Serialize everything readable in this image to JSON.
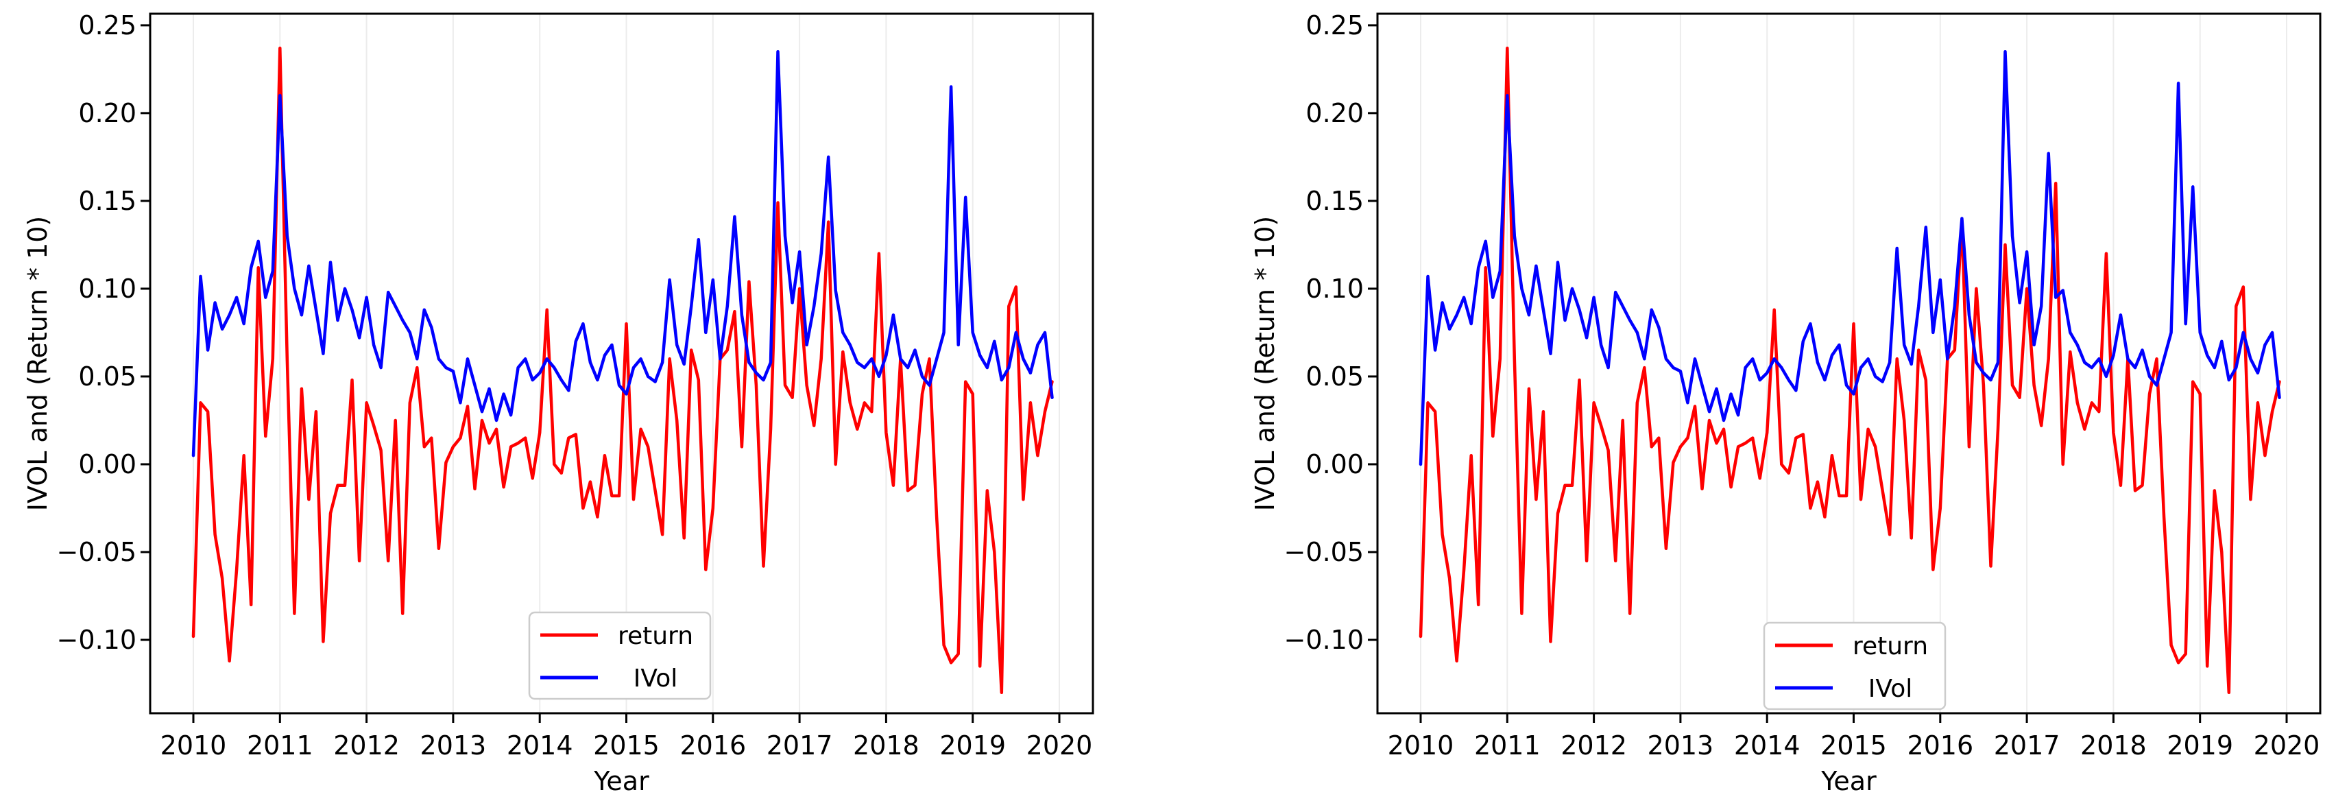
{
  "figure": {
    "background": "#ffffff",
    "panel_count": 2,
    "grid_color": "#ececec",
    "spine_color": "#000000"
  },
  "chart_data": [
    {
      "type": "line",
      "title": "",
      "xlabel": "Year",
      "ylabel": "IVOL and (Return * 10)",
      "x_tick_labels": [
        "2010",
        "2011",
        "2012",
        "2013",
        "2014",
        "2015",
        "2016",
        "2017",
        "2018",
        "2019",
        "2020"
      ],
      "y_tick_labels": [
        "0.25",
        "0.20",
        "0.15",
        "0.10",
        "0.05",
        "0.00",
        "−0.05",
        "−0.10"
      ],
      "y_tick_values": [
        0.25,
        0.2,
        0.15,
        0.1,
        0.05,
        0.0,
        -0.05,
        -0.1
      ],
      "xlim": [
        2009.5,
        2020.45
      ],
      "ylim": [
        -0.1418,
        0.2566
      ],
      "grid": "vertical-years-only",
      "x_start_year": 2010,
      "x_frequency": "monthly",
      "legend": {
        "position": "lower-center",
        "entries": [
          {
            "label": "return",
            "color": "#ff0000"
          },
          {
            "label": "IVol",
            "color": "#0000ff"
          }
        ]
      },
      "series": [
        {
          "name": "return",
          "color": "#ff0000",
          "values": [
            -0.098,
            0.035,
            0.03,
            -0.04,
            -0.065,
            -0.112,
            -0.06,
            0.005,
            -0.08,
            0.112,
            0.016,
            0.06,
            0.237,
            0.06,
            -0.085,
            0.043,
            -0.02,
            0.03,
            -0.101,
            -0.028,
            -0.012,
            -0.012,
            0.048,
            -0.055,
            0.035,
            0.022,
            0.008,
            -0.055,
            0.025,
            -0.085,
            0.035,
            0.055,
            0.01,
            0.015,
            -0.048,
            0.001,
            0.01,
            0.015,
            0.033,
            -0.014,
            0.025,
            0.012,
            0.02,
            -0.013,
            0.01,
            0.012,
            0.015,
            -0.008,
            0.018,
            0.088,
            0.0,
            -0.005,
            0.015,
            0.017,
            -0.025,
            -0.01,
            -0.03,
            0.005,
            -0.018,
            -0.018,
            0.08,
            -0.02,
            0.02,
            0.01,
            -0.015,
            -0.04,
            0.06,
            0.025,
            -0.042,
            0.065,
            0.048,
            -0.06,
            -0.025,
            0.06,
            0.065,
            0.087,
            0.01,
            0.104,
            0.045,
            -0.058,
            0.02,
            0.149,
            0.045,
            0.038,
            0.1,
            0.045,
            0.022,
            0.06,
            0.138,
            0.0,
            0.064,
            0.035,
            0.02,
            0.035,
            0.03,
            0.12,
            0.018,
            -0.012,
            0.06,
            -0.015,
            -0.012,
            0.04,
            0.06,
            -0.03,
            -0.103,
            -0.113,
            -0.108,
            0.047,
            0.04,
            -0.115,
            -0.015,
            -0.05,
            -0.13,
            0.09,
            0.101,
            -0.02,
            0.035,
            0.005,
            0.03,
            0.047
          ]
        },
        {
          "name": "IVol",
          "color": "#0000ff",
          "values": [
            0.005,
            0.107,
            0.065,
            0.092,
            0.077,
            0.085,
            0.095,
            0.08,
            0.112,
            0.127,
            0.095,
            0.11,
            0.21,
            0.13,
            0.1,
            0.085,
            0.113,
            0.088,
            0.063,
            0.115,
            0.082,
            0.1,
            0.088,
            0.072,
            0.095,
            0.068,
            0.055,
            0.098,
            0.09,
            0.082,
            0.075,
            0.06,
            0.088,
            0.078,
            0.06,
            0.055,
            0.053,
            0.035,
            0.06,
            0.045,
            0.03,
            0.043,
            0.025,
            0.04,
            0.028,
            0.055,
            0.06,
            0.048,
            0.052,
            0.06,
            0.055,
            0.048,
            0.042,
            0.07,
            0.08,
            0.058,
            0.048,
            0.062,
            0.068,
            0.045,
            0.04,
            0.055,
            0.06,
            0.05,
            0.047,
            0.058,
            0.105,
            0.068,
            0.057,
            0.09,
            0.128,
            0.075,
            0.105,
            0.06,
            0.09,
            0.141,
            0.085,
            0.058,
            0.052,
            0.048,
            0.058,
            0.235,
            0.13,
            0.092,
            0.121,
            0.068,
            0.09,
            0.12,
            0.175,
            0.099,
            0.075,
            0.068,
            0.058,
            0.055,
            0.06,
            0.05,
            0.062,
            0.085,
            0.06,
            0.055,
            0.065,
            0.05,
            0.045,
            0.06,
            0.075,
            0.215,
            0.068,
            0.152,
            0.075,
            0.062,
            0.055,
            0.07,
            0.048,
            0.055,
            0.075,
            0.06,
            0.052,
            0.068,
            0.075,
            0.038
          ]
        }
      ]
    },
    {
      "type": "line",
      "title": "",
      "xlabel": "Year",
      "ylabel": "IVOL and (Return * 10)",
      "x_tick_labels": [
        "2010",
        "2011",
        "2012",
        "2013",
        "2014",
        "2015",
        "2016",
        "2017",
        "2018",
        "2019",
        "2020"
      ],
      "y_tick_labels": [
        "0.25",
        "0.20",
        "0.15",
        "0.10",
        "0.05",
        "0.00",
        "−0.05",
        "−0.10"
      ],
      "y_tick_values": [
        0.25,
        0.2,
        0.15,
        0.1,
        0.05,
        0.0,
        -0.05,
        -0.1
      ],
      "xlim": [
        2009.5,
        2020.45
      ],
      "ylim": [
        -0.1418,
        0.2566
      ],
      "grid": "vertical-years-only",
      "x_start_year": 2010,
      "x_frequency": "monthly",
      "legend": {
        "position": "lower-center",
        "entries": [
          {
            "label": "return",
            "color": "#ff0000"
          },
          {
            "label": "IVol",
            "color": "#0000ff"
          }
        ]
      },
      "series": [
        {
          "name": "return",
          "color": "#ff0000",
          "values": [
            -0.098,
            0.035,
            0.03,
            -0.04,
            -0.065,
            -0.112,
            -0.06,
            0.005,
            -0.08,
            0.112,
            0.016,
            0.06,
            0.237,
            0.06,
            -0.085,
            0.043,
            -0.02,
            0.03,
            -0.101,
            -0.028,
            -0.012,
            -0.012,
            0.048,
            -0.055,
            0.035,
            0.022,
            0.008,
            -0.055,
            0.025,
            -0.085,
            0.035,
            0.055,
            0.01,
            0.015,
            -0.048,
            0.001,
            0.01,
            0.015,
            0.033,
            -0.014,
            0.025,
            0.012,
            0.02,
            -0.013,
            0.01,
            0.012,
            0.015,
            -0.008,
            0.018,
            0.088,
            0.0,
            -0.005,
            0.015,
            0.017,
            -0.025,
            -0.01,
            -0.03,
            0.005,
            -0.018,
            -0.018,
            0.08,
            -0.02,
            0.02,
            0.01,
            -0.015,
            -0.04,
            0.06,
            0.025,
            -0.042,
            0.065,
            0.048,
            -0.06,
            -0.025,
            0.06,
            0.065,
            0.139,
            0.01,
            0.1,
            0.045,
            -0.058,
            0.02,
            0.125,
            0.045,
            0.038,
            0.1,
            0.045,
            0.022,
            0.06,
            0.16,
            0.0,
            0.064,
            0.035,
            0.02,
            0.035,
            0.03,
            0.12,
            0.018,
            -0.012,
            0.06,
            -0.015,
            -0.012,
            0.04,
            0.06,
            -0.03,
            -0.103,
            -0.113,
            -0.108,
            0.047,
            0.04,
            -0.115,
            -0.015,
            -0.05,
            -0.13,
            0.09,
            0.101,
            -0.02,
            0.035,
            0.005,
            0.03,
            0.047
          ]
        },
        {
          "name": "IVol",
          "color": "#0000ff",
          "values": [
            0.0,
            0.107,
            0.065,
            0.092,
            0.077,
            0.085,
            0.095,
            0.08,
            0.112,
            0.127,
            0.095,
            0.11,
            0.21,
            0.13,
            0.1,
            0.085,
            0.113,
            0.088,
            0.063,
            0.115,
            0.082,
            0.1,
            0.088,
            0.072,
            0.095,
            0.068,
            0.055,
            0.098,
            0.09,
            0.082,
            0.075,
            0.06,
            0.088,
            0.078,
            0.06,
            0.055,
            0.053,
            0.035,
            0.06,
            0.045,
            0.03,
            0.043,
            0.025,
            0.04,
            0.028,
            0.055,
            0.06,
            0.048,
            0.052,
            0.06,
            0.055,
            0.048,
            0.042,
            0.07,
            0.08,
            0.058,
            0.048,
            0.062,
            0.068,
            0.045,
            0.04,
            0.055,
            0.06,
            0.05,
            0.047,
            0.058,
            0.123,
            0.068,
            0.057,
            0.09,
            0.135,
            0.075,
            0.105,
            0.06,
            0.09,
            0.14,
            0.085,
            0.058,
            0.052,
            0.048,
            0.058,
            0.235,
            0.13,
            0.092,
            0.121,
            0.068,
            0.09,
            0.177,
            0.095,
            0.099,
            0.075,
            0.068,
            0.058,
            0.055,
            0.06,
            0.05,
            0.062,
            0.085,
            0.06,
            0.055,
            0.065,
            0.05,
            0.045,
            0.06,
            0.075,
            0.217,
            0.08,
            0.158,
            0.075,
            0.062,
            0.055,
            0.07,
            0.048,
            0.055,
            0.075,
            0.06,
            0.052,
            0.068,
            0.075,
            0.038
          ]
        }
      ]
    }
  ]
}
